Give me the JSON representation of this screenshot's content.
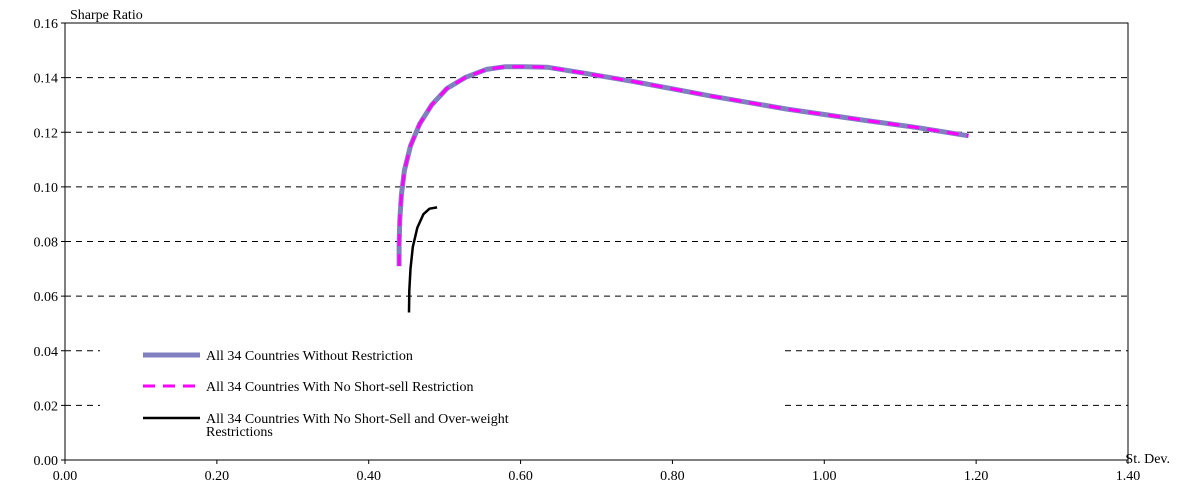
{
  "chart_data": {
    "type": "line",
    "title": "",
    "xlabel": "St. Dev.",
    "ylabel": "Sharpe Ratio",
    "xlim": [
      0,
      1.4
    ],
    "ylim": [
      0,
      0.16
    ],
    "xticks": [
      "0.00",
      "0.20",
      "0.40",
      "0.60",
      "0.80",
      "1.00",
      "1.20",
      "1.40"
    ],
    "yticks": [
      "0.00",
      "0.02",
      "0.04",
      "0.06",
      "0.08",
      "0.10",
      "0.12",
      "0.14",
      "0.16"
    ],
    "grid": "horizontal dashed",
    "legend_position": "bottom-left inside",
    "series": [
      {
        "name": "All 34 Countries Without Restriction",
        "color": "#8080c0",
        "style": "solid",
        "points": [
          [
            0.44,
            0.071
          ],
          [
            0.44,
            0.079
          ],
          [
            0.441,
            0.088
          ],
          [
            0.443,
            0.097
          ],
          [
            0.447,
            0.106
          ],
          [
            0.455,
            0.115
          ],
          [
            0.467,
            0.123
          ],
          [
            0.483,
            0.13
          ],
          [
            0.503,
            0.136
          ],
          [
            0.527,
            0.14
          ],
          [
            0.555,
            0.143
          ],
          [
            0.58,
            0.144
          ],
          [
            0.605,
            0.144
          ],
          [
            0.635,
            0.1438
          ],
          [
            0.68,
            0.1418
          ],
          [
            0.75,
            0.1385
          ],
          [
            0.85,
            0.1333
          ],
          [
            0.95,
            0.1285
          ],
          [
            1.05,
            0.1245
          ],
          [
            1.12,
            0.1218
          ],
          [
            1.19,
            0.1187
          ]
        ]
      },
      {
        "name": "All 34 Countries With No Short-sell Restriction",
        "color": "#ff00ff",
        "style": "dashed",
        "points": [
          [
            0.44,
            0.071
          ],
          [
            0.44,
            0.079
          ],
          [
            0.441,
            0.088
          ],
          [
            0.443,
            0.097
          ],
          [
            0.447,
            0.106
          ],
          [
            0.455,
            0.115
          ],
          [
            0.467,
            0.123
          ],
          [
            0.483,
            0.13
          ],
          [
            0.503,
            0.136
          ],
          [
            0.527,
            0.14
          ],
          [
            0.555,
            0.143
          ],
          [
            0.58,
            0.144
          ],
          [
            0.605,
            0.144
          ],
          [
            0.635,
            0.1438
          ],
          [
            0.68,
            0.1418
          ],
          [
            0.75,
            0.1385
          ],
          [
            0.85,
            0.1333
          ],
          [
            0.95,
            0.1285
          ],
          [
            1.05,
            0.1245
          ],
          [
            1.12,
            0.1218
          ],
          [
            1.19,
            0.1187
          ]
        ]
      },
      {
        "name": "All 34 Countries With No Short-Sell and Over-weight Restrictions",
        "color": "#000000",
        "style": "solid",
        "points": [
          [
            0.453,
            0.054
          ],
          [
            0.4535,
            0.062
          ],
          [
            0.455,
            0.07
          ],
          [
            0.458,
            0.078
          ],
          [
            0.464,
            0.085
          ],
          [
            0.472,
            0.09
          ],
          [
            0.48,
            0.092
          ],
          [
            0.49,
            0.0925
          ]
        ]
      }
    ]
  }
}
